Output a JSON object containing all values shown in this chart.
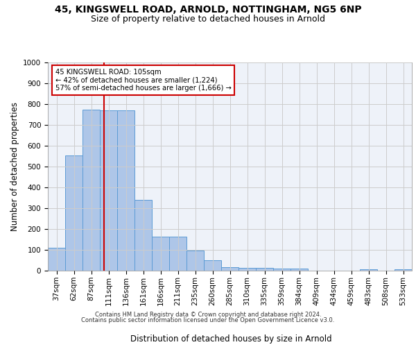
{
  "title_line1": "45, KINGSWELL ROAD, ARNOLD, NOTTINGHAM, NG5 6NP",
  "title_line2": "Size of property relative to detached houses in Arnold",
  "xlabel": "Distribution of detached houses by size in Arnold",
  "ylabel": "Number of detached properties",
  "footer_line1": "Contains HM Land Registry data © Crown copyright and database right 2024.",
  "footer_line2": "Contains public sector information licensed under the Open Government Licence v3.0.",
  "categories": [
    "37sqm",
    "62sqm",
    "87sqm",
    "111sqm",
    "136sqm",
    "161sqm",
    "186sqm",
    "211sqm",
    "235sqm",
    "260sqm",
    "285sqm",
    "310sqm",
    "335sqm",
    "359sqm",
    "384sqm",
    "409sqm",
    "434sqm",
    "459sqm",
    "483sqm",
    "508sqm",
    "533sqm"
  ],
  "values": [
    110,
    555,
    775,
    770,
    770,
    340,
    163,
    163,
    97,
    50,
    18,
    13,
    13,
    10,
    10,
    0,
    0,
    0,
    8,
    0,
    8
  ],
  "bar_color": "#aec6e8",
  "bar_edge_color": "#5b9bd5",
  "vline_color": "#cc0000",
  "annotation_text": "45 KINGSWELL ROAD: 105sqm\n← 42% of detached houses are smaller (1,224)\n57% of semi-detached houses are larger (1,666) →",
  "annotation_box_color": "#cc0000",
  "ylim": [
    0,
    1000
  ],
  "yticks": [
    0,
    100,
    200,
    300,
    400,
    500,
    600,
    700,
    800,
    900,
    1000
  ],
  "grid_color": "#cccccc",
  "bg_color": "#eef2f9",
  "title_fontsize": 10,
  "subtitle_fontsize": 9,
  "axis_label_fontsize": 8.5,
  "tick_fontsize": 7.5,
  "footer_fontsize": 6.0
}
